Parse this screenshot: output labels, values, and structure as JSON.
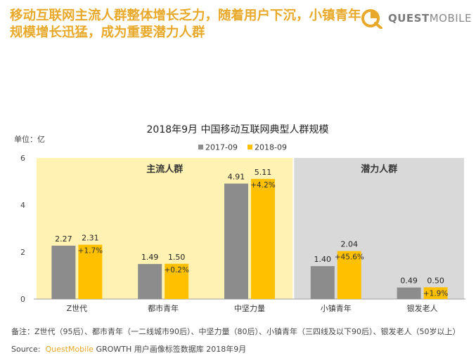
{
  "headline": "移动互联网主流人群整体增长乏力，随着用户下沉，小镇青年规模增长迅猛，成为重要潜力人群",
  "logo": {
    "brand_strong": "QUEST",
    "brand_light": "MOBILE",
    "icon": "questmobile-logo-icon",
    "color": "#e8a92a"
  },
  "chart_data": {
    "type": "bar",
    "title": "2018年9月 中国移动互联网典型人群规模",
    "unit_label": "单位：亿",
    "categories": [
      "Z世代",
      "都市青年",
      "中坚力量",
      "小镇青年",
      "银发老人"
    ],
    "series": [
      {
        "name": "2017-09",
        "color": "#8c8c8c",
        "values": [
          2.27,
          1.49,
          4.91,
          1.4,
          0.49
        ],
        "labels": [
          "2.27",
          "1.49",
          "4.91",
          "1.40",
          "0.49"
        ]
      },
      {
        "name": "2018-09",
        "color": "#ffc000",
        "values": [
          2.31,
          1.5,
          5.11,
          2.04,
          0.5
        ],
        "labels": [
          "2.31",
          "1.50",
          "5.11",
          "2.04",
          "0.50"
        ]
      }
    ],
    "growth_labels": [
      "+1.7%",
      "+0.2%",
      "+4.2%",
      "+45.6%",
      "+1.9%"
    ],
    "ylim": [
      0,
      6
    ],
    "yticks": [
      0,
      2,
      4,
      6
    ],
    "groups": [
      {
        "label": "主流人群",
        "from": 0,
        "to": 2,
        "color": "#fff2b3"
      },
      {
        "label": "潜力人群",
        "from": 3,
        "to": 4,
        "color": "#d9d9d9"
      }
    ],
    "legend_position": "top",
    "grid": false
  },
  "note": "备注：Z世代（95后）、都市青年（一二线城市90后）、中坚力量（80后）、小镇青年（三四线及以下90后）、银发老人（50岁以上）",
  "source": {
    "prefix": "Source:",
    "brand_strong": "Quest",
    "brand_light": "Mobile",
    "rest": " GROWTH 用户画像标签数据库 2018年9月"
  }
}
